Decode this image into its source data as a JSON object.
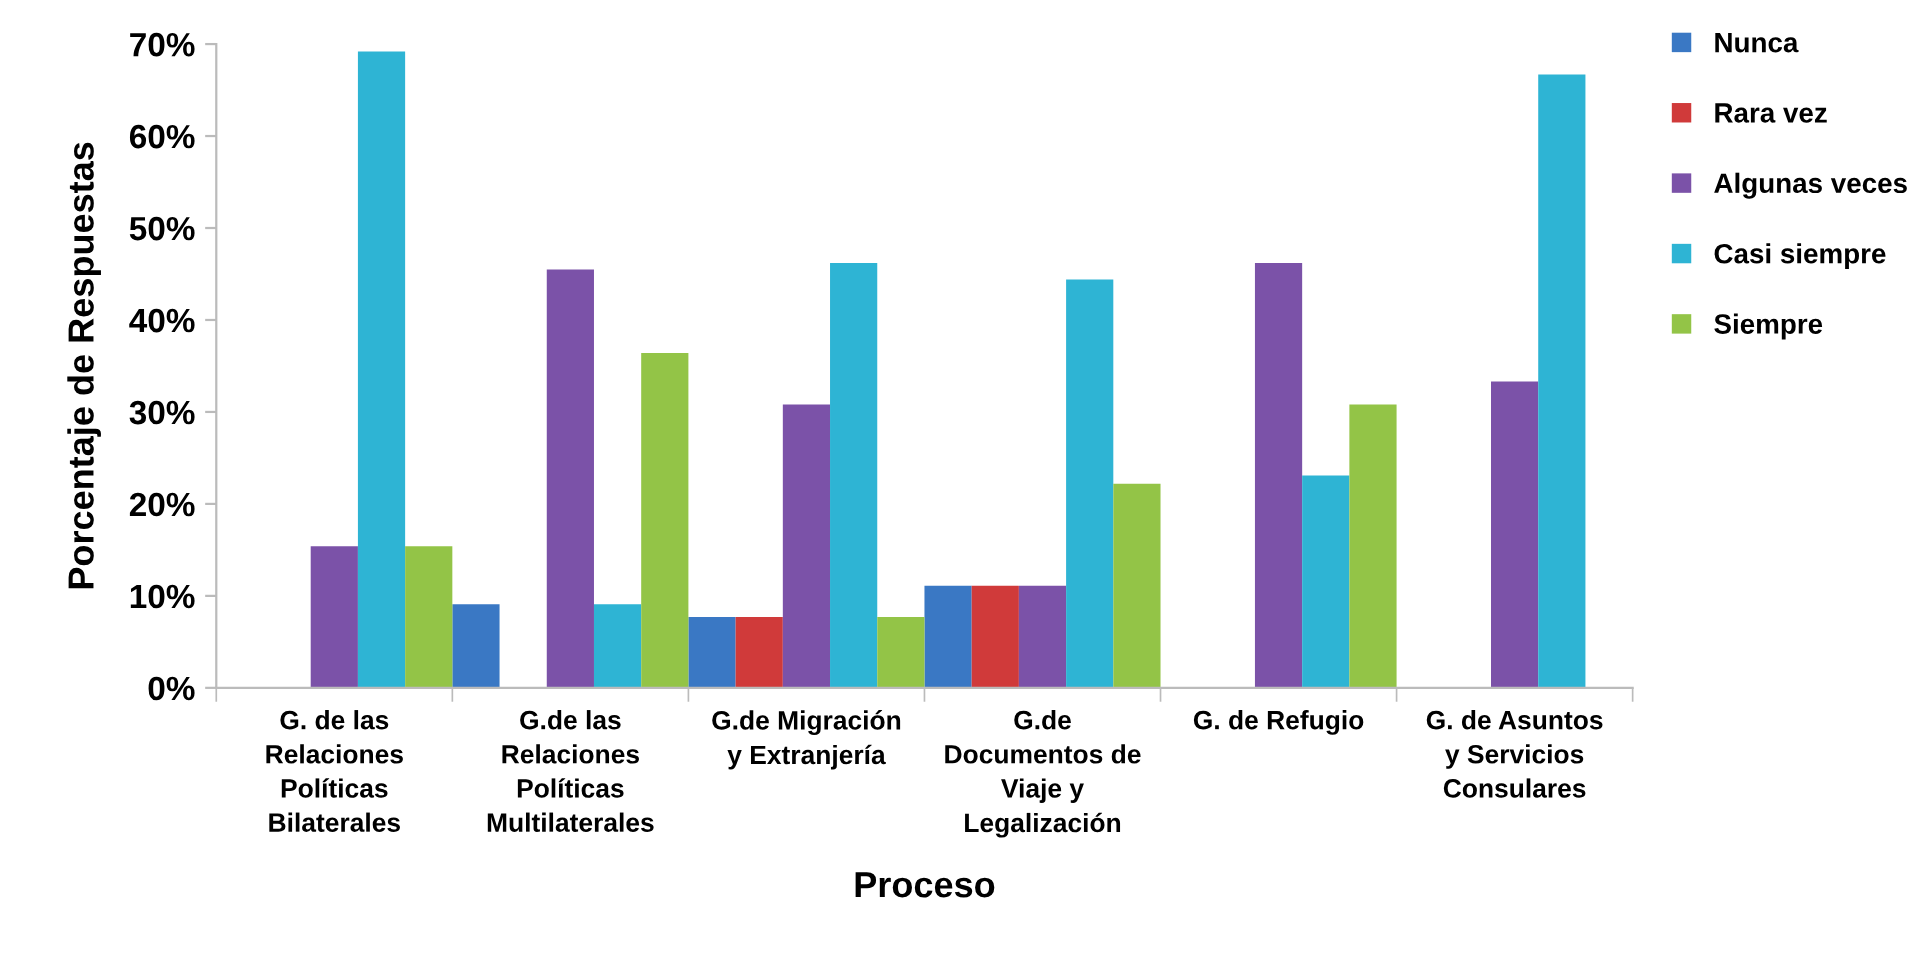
{
  "chart_data": {
    "type": "bar",
    "xlabel": "Proceso",
    "ylabel": "Porcentaje de Respuestas",
    "categories": [
      "G. de las Relaciones Políticas Bilaterales",
      "G.de las Relaciones Políticas Multilaterales",
      "G.de Migración y Extranjería",
      "G.de Documentos de Viaje y Legalización",
      "G. de Refugio",
      "G. de Asuntos y Servicios Consulares"
    ],
    "series": [
      {
        "name": "Nunca",
        "color": "#3a78c4",
        "values": [
          0,
          9.1,
          7.7,
          11.1,
          0,
          0
        ]
      },
      {
        "name": "Rara vez",
        "color": "#d03a3a",
        "values": [
          0,
          0,
          7.7,
          11.1,
          0,
          0
        ]
      },
      {
        "name": "Algunas veces",
        "color": "#7b52a8",
        "values": [
          15.4,
          45.5,
          30.8,
          11.1,
          46.2,
          33.3
        ]
      },
      {
        "name": "Casi siempre",
        "color": "#2eb4d4",
        "values": [
          69.2,
          9.1,
          46.2,
          44.4,
          23.1,
          66.7
        ]
      },
      {
        "name": "Siempre",
        "color": "#93c447",
        "values": [
          15.4,
          36.4,
          7.7,
          22.2,
          30.8,
          0
        ]
      }
    ],
    "ylim": [
      0,
      70
    ],
    "yticks": [
      {
        "value": 0,
        "label": "0%"
      },
      {
        "value": 10,
        "label": "10%"
      },
      {
        "value": 20,
        "label": "20%"
      },
      {
        "value": 30,
        "label": "30%"
      },
      {
        "value": 40,
        "label": "40%"
      },
      {
        "value": 50,
        "label": "50%"
      },
      {
        "value": 60,
        "label": "60%"
      },
      {
        "value": 70,
        "label": "70%"
      }
    ],
    "grid": false,
    "legend": "right"
  }
}
